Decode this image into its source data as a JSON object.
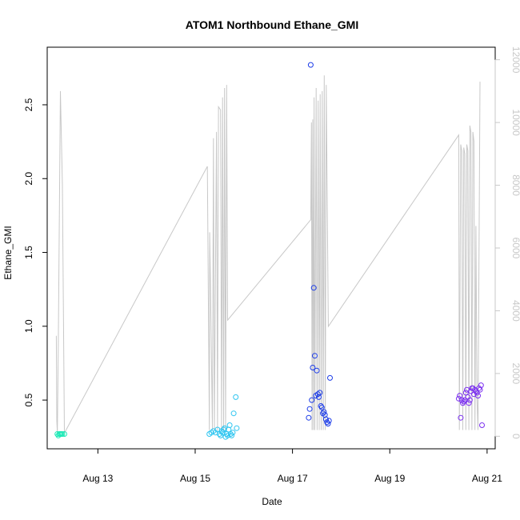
{
  "chart_data": {
    "type": "scatter",
    "title": "ATOM1 Northbound Ethane_GMI",
    "xlabel": "Date",
    "ylabel": "Ethane_GMI",
    "xlim": [
      "2016-08-11T23:00",
      "2016-08-21T04:00"
    ],
    "ylim": [
      0.17,
      2.89
    ],
    "y2lim": [
      -400,
      12400
    ],
    "x_ticks": [
      {
        "value": "2016-08-13",
        "label": "Aug 13"
      },
      {
        "value": "2016-08-15",
        "label": "Aug 15"
      },
      {
        "value": "2016-08-17",
        "label": "Aug 17"
      },
      {
        "value": "2016-08-19",
        "label": "Aug 19"
      },
      {
        "value": "2016-08-21",
        "label": "Aug 21"
      }
    ],
    "y_ticks": [
      "0.5",
      "1.0",
      "1.5",
      "2.0",
      "2.5"
    ],
    "y2_ticks": [
      "0",
      "2000",
      "4000",
      "6000",
      "8000",
      "10000",
      "12000"
    ],
    "grid": false,
    "colors": {
      "frame": "#000000",
      "altitude_line": "#c8c8c8",
      "right_axis": "#c8c8c8"
    },
    "series": [
      {
        "color": "#1de9b6",
        "points": [
          [
            "2016-08-12T04:00",
            0.27
          ],
          [
            "2016-08-12T04:30",
            0.26
          ],
          [
            "2016-08-12T05:00",
            0.27
          ],
          [
            "2016-08-12T05:30",
            0.27
          ],
          [
            "2016-08-12T06:00",
            0.27
          ],
          [
            "2016-08-12T06:30",
            0.27
          ],
          [
            "2016-08-12T07:30",
            0.27
          ]
        ]
      },
      {
        "color": "#2ec5f0",
        "points": [
          [
            "2016-08-15T07:00",
            0.27
          ],
          [
            "2016-08-15T08:00",
            0.28
          ],
          [
            "2016-08-15T09:00",
            0.29
          ],
          [
            "2016-08-15T10:00",
            0.28
          ],
          [
            "2016-08-15T11:00",
            0.3
          ],
          [
            "2016-08-15T12:00",
            0.27
          ],
          [
            "2016-08-15T12:30",
            0.26
          ],
          [
            "2016-08-15T13:00",
            0.29
          ],
          [
            "2016-08-15T13:30",
            0.28
          ],
          [
            "2016-08-15T14:00",
            0.3
          ],
          [
            "2016-08-15T14:30",
            0.31
          ],
          [
            "2016-08-15T15:00",
            0.25
          ],
          [
            "2016-08-15T15:30",
            0.27
          ],
          [
            "2016-08-15T16:00",
            0.26
          ],
          [
            "2016-08-15T16:30",
            0.3
          ],
          [
            "2016-08-15T17:00",
            0.33
          ],
          [
            "2016-08-15T17:30",
            0.27
          ],
          [
            "2016-08-15T18:00",
            0.26
          ],
          [
            "2016-08-15T18:30",
            0.28
          ],
          [
            "2016-08-15T19:00",
            0.41
          ],
          [
            "2016-08-15T20:00",
            0.52
          ],
          [
            "2016-08-15T20:30",
            0.31
          ]
        ]
      },
      {
        "color": "#1d3de8",
        "points": [
          [
            "2016-08-17T08:00",
            0.38
          ],
          [
            "2016-08-17T08:30",
            0.44
          ],
          [
            "2016-08-17T09:00",
            2.77
          ],
          [
            "2016-08-17T09:30",
            0.5
          ],
          [
            "2016-08-17T10:00",
            0.72
          ],
          [
            "2016-08-17T10:30",
            1.26
          ],
          [
            "2016-08-17T11:00",
            0.8
          ],
          [
            "2016-08-17T11:30",
            0.53
          ],
          [
            "2016-08-17T12:00",
            0.7
          ],
          [
            "2016-08-17T12:30",
            0.54
          ],
          [
            "2016-08-17T13:00",
            0.52
          ],
          [
            "2016-08-17T13:30",
            0.55
          ],
          [
            "2016-08-17T14:00",
            0.46
          ],
          [
            "2016-08-17T14:30",
            0.45
          ],
          [
            "2016-08-17T15:00",
            0.41
          ],
          [
            "2016-08-17T15:30",
            0.42
          ],
          [
            "2016-08-17T16:00",
            0.4
          ],
          [
            "2016-08-17T16:30",
            0.37
          ],
          [
            "2016-08-17T17:00",
            0.35
          ],
          [
            "2016-08-17T17:30",
            0.34
          ],
          [
            "2016-08-17T18:00",
            0.36
          ],
          [
            "2016-08-17T18:30",
            0.65
          ]
        ]
      },
      {
        "color": "#7b2ff0",
        "points": [
          [
            "2016-08-20T10:00",
            0.51
          ],
          [
            "2016-08-20T10:30",
            0.53
          ],
          [
            "2016-08-20T11:00",
            0.38
          ],
          [
            "2016-08-20T11:30",
            0.5
          ],
          [
            "2016-08-20T12:00",
            0.48
          ],
          [
            "2016-08-20T12:30",
            0.49
          ],
          [
            "2016-08-20T13:00",
            0.5
          ],
          [
            "2016-08-20T13:30",
            0.55
          ],
          [
            "2016-08-20T14:00",
            0.57
          ],
          [
            "2016-08-20T14:30",
            0.52
          ],
          [
            "2016-08-20T15:00",
            0.48
          ],
          [
            "2016-08-20T15:30",
            0.5
          ],
          [
            "2016-08-20T16:00",
            0.56
          ],
          [
            "2016-08-20T16:30",
            0.58
          ],
          [
            "2016-08-20T17:00",
            0.58
          ],
          [
            "2016-08-20T17:30",
            0.54
          ],
          [
            "2016-08-20T18:00",
            0.57
          ],
          [
            "2016-08-20T18:30",
            0.56
          ],
          [
            "2016-08-20T19:00",
            0.55
          ],
          [
            "2016-08-20T19:30",
            0.53
          ],
          [
            "2016-08-20T20:00",
            0.58
          ],
          [
            "2016-08-20T20:30",
            0.57
          ],
          [
            "2016-08-20T21:00",
            0.6
          ],
          [
            "2016-08-20T21:30",
            0.33
          ]
        ]
      }
    ],
    "altitude_series": {
      "color": "#c8c8c8",
      "points": [
        [
          "2016-08-12T03:30",
          3200
        ],
        [
          "2016-08-12T03:45",
          500
        ],
        [
          "2016-08-12T04:00",
          100
        ],
        [
          "2016-08-12T04:30",
          3000
        ],
        [
          "2016-08-12T05:30",
          11000
        ],
        [
          "2016-08-12T06:30",
          8000
        ],
        [
          "2016-08-12T07:30",
          100
        ],
        [
          "2016-08-15T06:00",
          8600
        ],
        [
          "2016-08-15T07:00",
          200
        ],
        [
          "2016-08-15T07:10",
          6500
        ],
        [
          "2016-08-15T07:30",
          5000
        ],
        [
          "2016-08-15T08:30",
          200
        ],
        [
          "2016-08-15T09:00",
          9500
        ],
        [
          "2016-08-15T09:30",
          200
        ],
        [
          "2016-08-15T10:30",
          9700
        ],
        [
          "2016-08-15T11:00",
          200
        ],
        [
          "2016-08-15T11:30",
          10500
        ],
        [
          "2016-08-15T12:30",
          10400
        ],
        [
          "2016-08-15T13:00",
          200
        ],
        [
          "2016-08-15T13:30",
          10800
        ],
        [
          "2016-08-15T14:00",
          200
        ],
        [
          "2016-08-15T14:30",
          11100
        ],
        [
          "2016-08-15T15:00",
          200
        ],
        [
          "2016-08-15T15:30",
          11200
        ],
        [
          "2016-08-15T16:00",
          3700
        ],
        [
          "2016-08-17T09:00",
          6900
        ],
        [
          "2016-08-17T09:20",
          10000
        ],
        [
          "2016-08-17T09:40",
          200
        ],
        [
          "2016-08-17T10:00",
          10100
        ],
        [
          "2016-08-17T10:20",
          200
        ],
        [
          "2016-08-17T10:40",
          10800
        ],
        [
          "2016-08-17T11:00",
          200
        ],
        [
          "2016-08-17T11:40",
          11100
        ],
        [
          "2016-08-17T12:10",
          200
        ],
        [
          "2016-08-17T12:40",
          10700
        ],
        [
          "2016-08-17T13:10",
          200
        ],
        [
          "2016-08-17T13:40",
          10900
        ],
        [
          "2016-08-17T14:10",
          200
        ],
        [
          "2016-08-17T14:40",
          11000
        ],
        [
          "2016-08-17T15:10",
          200
        ],
        [
          "2016-08-17T15:40",
          11500
        ],
        [
          "2016-08-17T16:10",
          200
        ],
        [
          "2016-08-17T16:40",
          11200
        ],
        [
          "2016-08-17T17:40",
          3500
        ],
        [
          "2016-08-20T10:00",
          9600
        ],
        [
          "2016-08-20T10:20",
          200
        ],
        [
          "2016-08-20T11:00",
          9300
        ],
        [
          "2016-08-20T11:30",
          9100
        ],
        [
          "2016-08-20T12:00",
          200
        ],
        [
          "2016-08-20T12:30",
          9200
        ],
        [
          "2016-08-20T13:00",
          9000
        ],
        [
          "2016-08-20T13:30",
          200
        ],
        [
          "2016-08-20T14:00",
          9300
        ],
        [
          "2016-08-20T14:30",
          9100
        ],
        [
          "2016-08-20T15:00",
          200
        ],
        [
          "2016-08-20T15:30",
          9900
        ],
        [
          "2016-08-20T16:00",
          9700
        ],
        [
          "2016-08-20T16:30",
          200
        ],
        [
          "2016-08-20T17:00",
          9700
        ],
        [
          "2016-08-20T17:30",
          9400
        ],
        [
          "2016-08-20T18:00",
          200
        ],
        [
          "2016-08-20T18:30",
          6700
        ],
        [
          "2016-08-20T19:00",
          1200
        ],
        [
          "2016-08-20T19:30",
          200
        ],
        [
          "2016-08-20T20:30",
          11300
        ]
      ]
    }
  }
}
